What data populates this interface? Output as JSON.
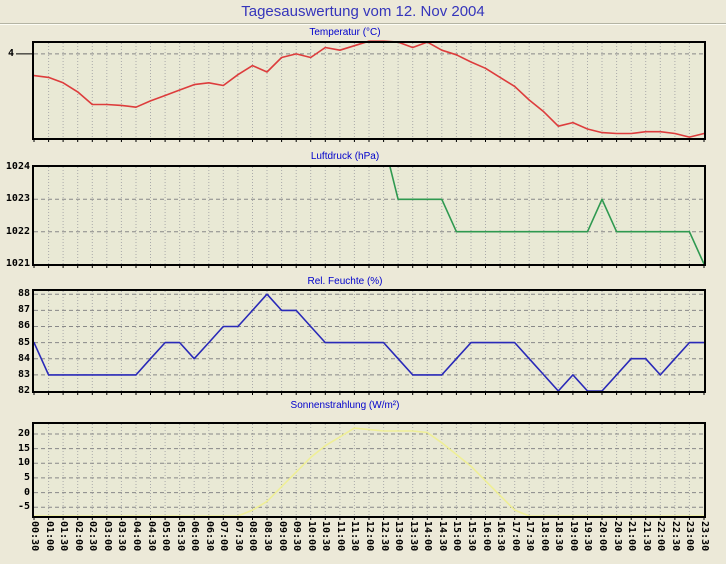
{
  "header": {
    "title": "Tagesauswertung vom 12. Nov 2004"
  },
  "colors": {
    "page_bg": "#ece9d8",
    "plot_bg": "#e9e9d5",
    "frame": "#000000",
    "grid_vertical": "#aaaaaa",
    "grid_horizontal": "#888888",
    "title_text": "#3535bb",
    "chart_title_text": "#0000cc",
    "tick_text": "#000000",
    "temperature_line": "#dd3c3c",
    "pressure_line": "#2f9950",
    "humidity_line": "#2929b8",
    "radiation_line": "#efef96"
  },
  "x_labels": [
    "00:30",
    "01:00",
    "01:30",
    "02:00",
    "02:30",
    "03:00",
    "03:30",
    "04:00",
    "04:30",
    "05:00",
    "05:30",
    "06:00",
    "06:30",
    "07:00",
    "07:30",
    "08:00",
    "08:30",
    "09:00",
    "09:30",
    "10:00",
    "10:30",
    "11:00",
    "11:30",
    "12:00",
    "12:30",
    "13:00",
    "13:30",
    "14:00",
    "14:30",
    "15:00",
    "15:30",
    "16:00",
    "16:30",
    "17:00",
    "17:30",
    "18:00",
    "18:30",
    "19:00",
    "19:30",
    "20:00",
    "20:30",
    "21:00",
    "21:30",
    "22:00",
    "22:30",
    "23:00",
    "23:30"
  ],
  "chart_data": [
    {
      "type": "line",
      "id": "temperatur",
      "title": "Temperatur (°C)",
      "line_color": "#dd3c3c",
      "ylim": [
        3.07,
        4.12
      ],
      "grid": true,
      "yticks": [
        {
          "value": 4,
          "label": "4"
        }
      ],
      "values": [
        3.76,
        3.74,
        3.68,
        3.58,
        3.44,
        3.44,
        3.43,
        3.41,
        3.48,
        3.54,
        3.6,
        3.66,
        3.68,
        3.65,
        3.77,
        3.87,
        3.8,
        3.96,
        4.0,
        3.96,
        4.07,
        4.04,
        4.09,
        4.14,
        4.14,
        4.13,
        4.07,
        4.13,
        4.04,
        3.99,
        3.91,
        3.84,
        3.74,
        3.64,
        3.49,
        3.36,
        3.2,
        3.24,
        3.17,
        3.13,
        3.12,
        3.12,
        3.14,
        3.14,
        3.12,
        3.08,
        3.12
      ]
    },
    {
      "type": "line",
      "id": "luftdruck",
      "title": "Luftdruck (hPa)",
      "line_color": "#2f9950",
      "ylim": [
        1021,
        1024
      ],
      "grid": true,
      "yticks": [
        {
          "value": 1024,
          "label": "1024"
        },
        {
          "value": 1023,
          "label": "1023"
        },
        {
          "value": 1022,
          "label": "1022"
        },
        {
          "value": 1021,
          "label": "1021"
        }
      ],
      "values": [
        null,
        null,
        null,
        null,
        null,
        null,
        null,
        null,
        null,
        null,
        null,
        null,
        null,
        null,
        null,
        null,
        null,
        null,
        null,
        null,
        null,
        null,
        null,
        null,
        1024.8,
        1023,
        1023,
        1023,
        1023,
        1022,
        1022,
        1022,
        1022,
        1022,
        1022,
        1022,
        1022,
        1022,
        1022,
        1023,
        1022,
        1022,
        1022,
        1022,
        1022,
        1022,
        1021
      ]
    },
    {
      "type": "line",
      "id": "rel-feuchte",
      "title": "Rel. Feuchte (%)",
      "line_color": "#2929b8",
      "ylim": [
        82,
        88.2
      ],
      "grid": true,
      "yticks": [
        {
          "value": 88,
          "label": "88"
        },
        {
          "value": 87,
          "label": "87"
        },
        {
          "value": 86,
          "label": "86"
        },
        {
          "value": 85,
          "label": "85"
        },
        {
          "value": 84,
          "label": "84"
        },
        {
          "value": 83,
          "label": "83"
        },
        {
          "value": 82,
          "label": "82"
        }
      ],
      "values": [
        85,
        83,
        83,
        83,
        83,
        83,
        83,
        83,
        84,
        85,
        85,
        84,
        85,
        86,
        86,
        87,
        88,
        87,
        87,
        86,
        85,
        85,
        85,
        85,
        85,
        84,
        83,
        83,
        83,
        84,
        85,
        85,
        85,
        85,
        84,
        83,
        82,
        83,
        82,
        82,
        83,
        84,
        84,
        83,
        84,
        85,
        85
      ]
    },
    {
      "type": "line",
      "id": "sonnenstrahlung",
      "title": "Sonnenstrahlung (W/m²)",
      "line_color": "#efef96",
      "ylim": [
        -8,
        23.4
      ],
      "grid": true,
      "yticks": [
        {
          "value": 20,
          "label": "20"
        },
        {
          "value": 15,
          "label": "15"
        },
        {
          "value": 10,
          "label": "10"
        },
        {
          "value": 5,
          "label": "5"
        },
        {
          "value": 0,
          "label": "0"
        },
        {
          "value": -5,
          "label": "-5"
        }
      ],
      "values": [
        -8,
        -8,
        -8,
        -8,
        -8,
        -8,
        -8,
        -8,
        -8,
        -8,
        -8,
        -8,
        -8,
        -8,
        -8,
        -6,
        -3,
        2,
        7,
        12,
        16,
        19,
        22,
        21.5,
        21,
        21,
        21,
        20.5,
        17,
        13,
        9,
        4,
        -1,
        -6,
        -8,
        -8,
        -8,
        -8,
        -8,
        -8,
        -8,
        -8,
        -8,
        -8,
        -8,
        -8,
        -8
      ]
    }
  ]
}
